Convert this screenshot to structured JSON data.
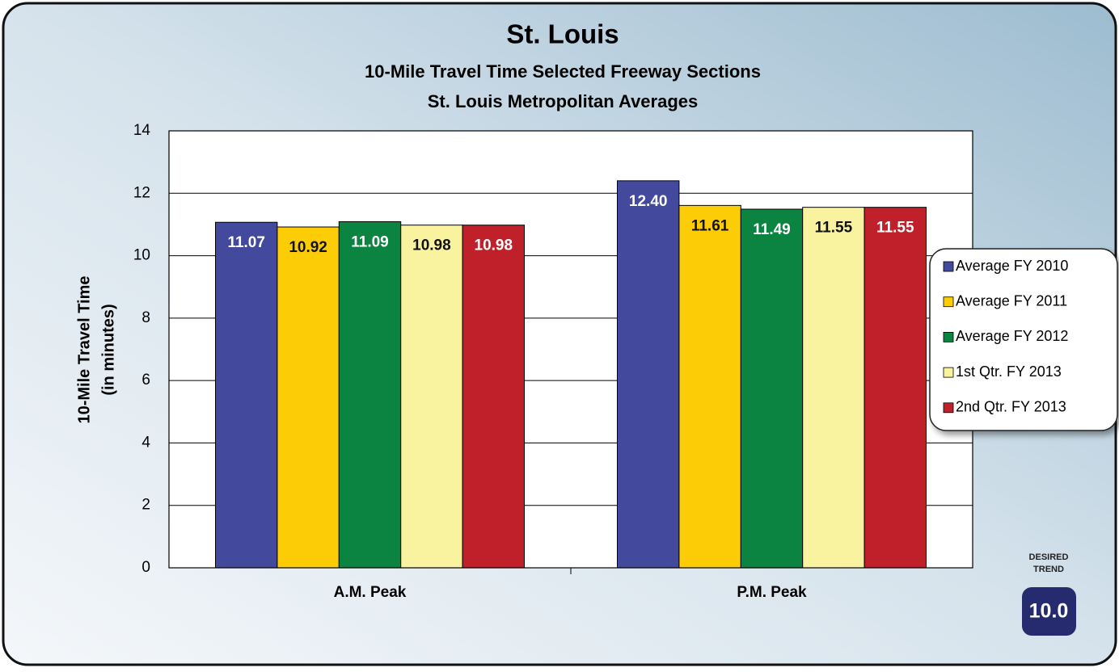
{
  "chart_data": {
    "type": "bar",
    "title": "St. Louis",
    "subtitle": [
      "10-Mile Travel Time Selected Freeway Sections",
      "St. Louis Metropolitan Averages"
    ],
    "ylabel": [
      "10-Mile Travel Time",
      "(in minutes)"
    ],
    "categories": [
      "A.M. Peak",
      "P.M. Peak"
    ],
    "series": [
      {
        "name": "Average FY 2010",
        "color": "#434a9e",
        "values": [
          11.07,
          12.4
        ],
        "value_labels": [
          "11.07",
          "12.40"
        ]
      },
      {
        "name": "Average FY 2011",
        "color": "#fccc07",
        "values": [
          10.92,
          11.61
        ],
        "value_labels": [
          "10.92",
          "11.61"
        ]
      },
      {
        "name": "Average FY 2012",
        "color": "#0b8442",
        "values": [
          11.09,
          11.49
        ],
        "value_labels": [
          "11.09",
          "11.49"
        ]
      },
      {
        "name": "1st Qtr. FY 2013",
        "color": "#f9f29f",
        "values": [
          10.98,
          11.55
        ],
        "value_labels": [
          "10.98",
          "11.55"
        ]
      },
      {
        "name": "2nd Qtr. FY 2013",
        "color": "#c0202a",
        "values": [
          10.98,
          11.55
        ],
        "value_labels": [
          "10.98",
          "11.55"
        ]
      }
    ],
    "ylim": [
      0,
      14
    ],
    "yticks": [
      0,
      2,
      4,
      6,
      8,
      10,
      12,
      14
    ],
    "grid": true,
    "legend": "right",
    "badge": {
      "heading": [
        "DESIRED",
        "TREND"
      ],
      "text": "10.0"
    }
  }
}
